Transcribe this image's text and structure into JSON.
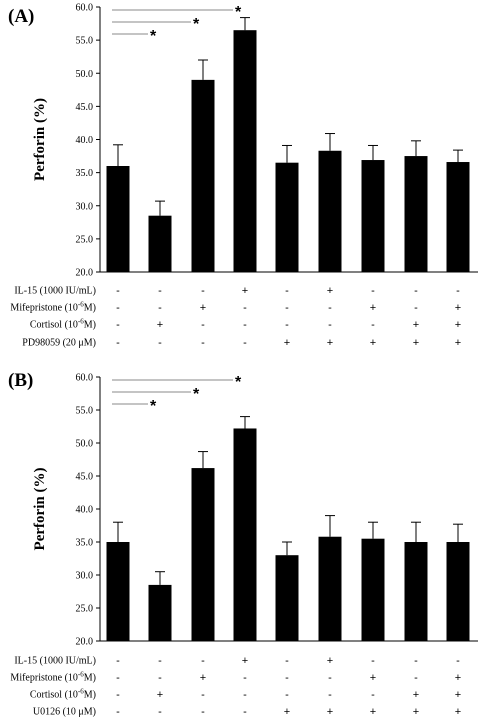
{
  "chart_data": [
    {
      "type": "bar",
      "panel_label": "(A)",
      "ylabel": "Perforin (%)",
      "ylim": [
        20.0,
        60.0
      ],
      "yticks": [
        "20.0",
        "25.0",
        "30.0",
        "35.0",
        "40.0",
        "45.0",
        "50.0",
        "55.0",
        "60.0"
      ],
      "values": [
        36.0,
        28.5,
        49.0,
        56.5,
        36.5,
        38.3,
        36.9,
        37.5,
        36.6
      ],
      "errors": [
        3.2,
        2.2,
        3.0,
        1.9,
        2.6,
        2.6,
        2.2,
        2.3,
        1.8
      ],
      "color": "#000000",
      "significance": [
        {
          "from": 0,
          "to": 3,
          "label": "*"
        },
        {
          "from": 0,
          "to": 2,
          "label": "*"
        },
        {
          "from": 0,
          "to": 1,
          "label": "*"
        }
      ],
      "treatment_rows": [
        {
          "label": "IL-15 (1000 IU/mL)",
          "signs": [
            "-",
            "-",
            "-",
            "+",
            "-",
            "+",
            "-",
            "-",
            "-"
          ]
        },
        {
          "label": "Mifepristone (10",
          "sup": "-6",
          "label_suffix": "M)",
          "signs": [
            "-",
            "-",
            "+",
            "-",
            "-",
            "-",
            "+",
            "-",
            "+"
          ]
        },
        {
          "label": "Cortisol (10",
          "sup": "-6",
          "label_suffix": "M)",
          "signs": [
            "-",
            "+",
            "-",
            "-",
            "-",
            "-",
            "-",
            "+",
            "+"
          ]
        },
        {
          "label": "PD98059 (20 μM)",
          "signs": [
            "-",
            "-",
            "-",
            "-",
            "+",
            "+",
            "+",
            "+",
            "+"
          ]
        }
      ]
    },
    {
      "type": "bar",
      "panel_label": "(B)",
      "ylabel": "Perforin (%)",
      "ylim": [
        20.0,
        60.0
      ],
      "yticks": [
        "20.0",
        "25.0",
        "30.0",
        "35.0",
        "40.0",
        "45.0",
        "50.0",
        "55.0",
        "60.0"
      ],
      "values": [
        35.0,
        28.5,
        46.2,
        52.2,
        33.0,
        35.8,
        35.5,
        35.0,
        35.0
      ],
      "errors": [
        3.0,
        2.0,
        2.5,
        1.8,
        2.0,
        3.2,
        2.5,
        3.0,
        2.7
      ],
      "color": "#000000",
      "significance": [
        {
          "from": 0,
          "to": 3,
          "label": "*"
        },
        {
          "from": 0,
          "to": 2,
          "label": "*"
        },
        {
          "from": 0,
          "to": 1,
          "label": "*"
        }
      ],
      "treatment_rows": [
        {
          "label": "IL-15 (1000 IU/mL)",
          "signs": [
            "-",
            "-",
            "-",
            "+",
            "-",
            "+",
            "-",
            "-",
            "-"
          ]
        },
        {
          "label": "Mifepristone (10",
          "sup": "-6",
          "label_suffix": "M)",
          "signs": [
            "-",
            "-",
            "+",
            "-",
            "-",
            "-",
            "+",
            "-",
            "+"
          ]
        },
        {
          "label": "Cortisol (10",
          "sup": "-6",
          "label_suffix": "M)",
          "signs": [
            "-",
            "+",
            "-",
            "-",
            "-",
            "-",
            "-",
            "+",
            "+"
          ]
        },
        {
          "label": "U0126 (10 μM)",
          "signs": [
            "-",
            "-",
            "-",
            "-",
            "+",
            "+",
            "+",
            "+",
            "+"
          ]
        }
      ]
    }
  ]
}
